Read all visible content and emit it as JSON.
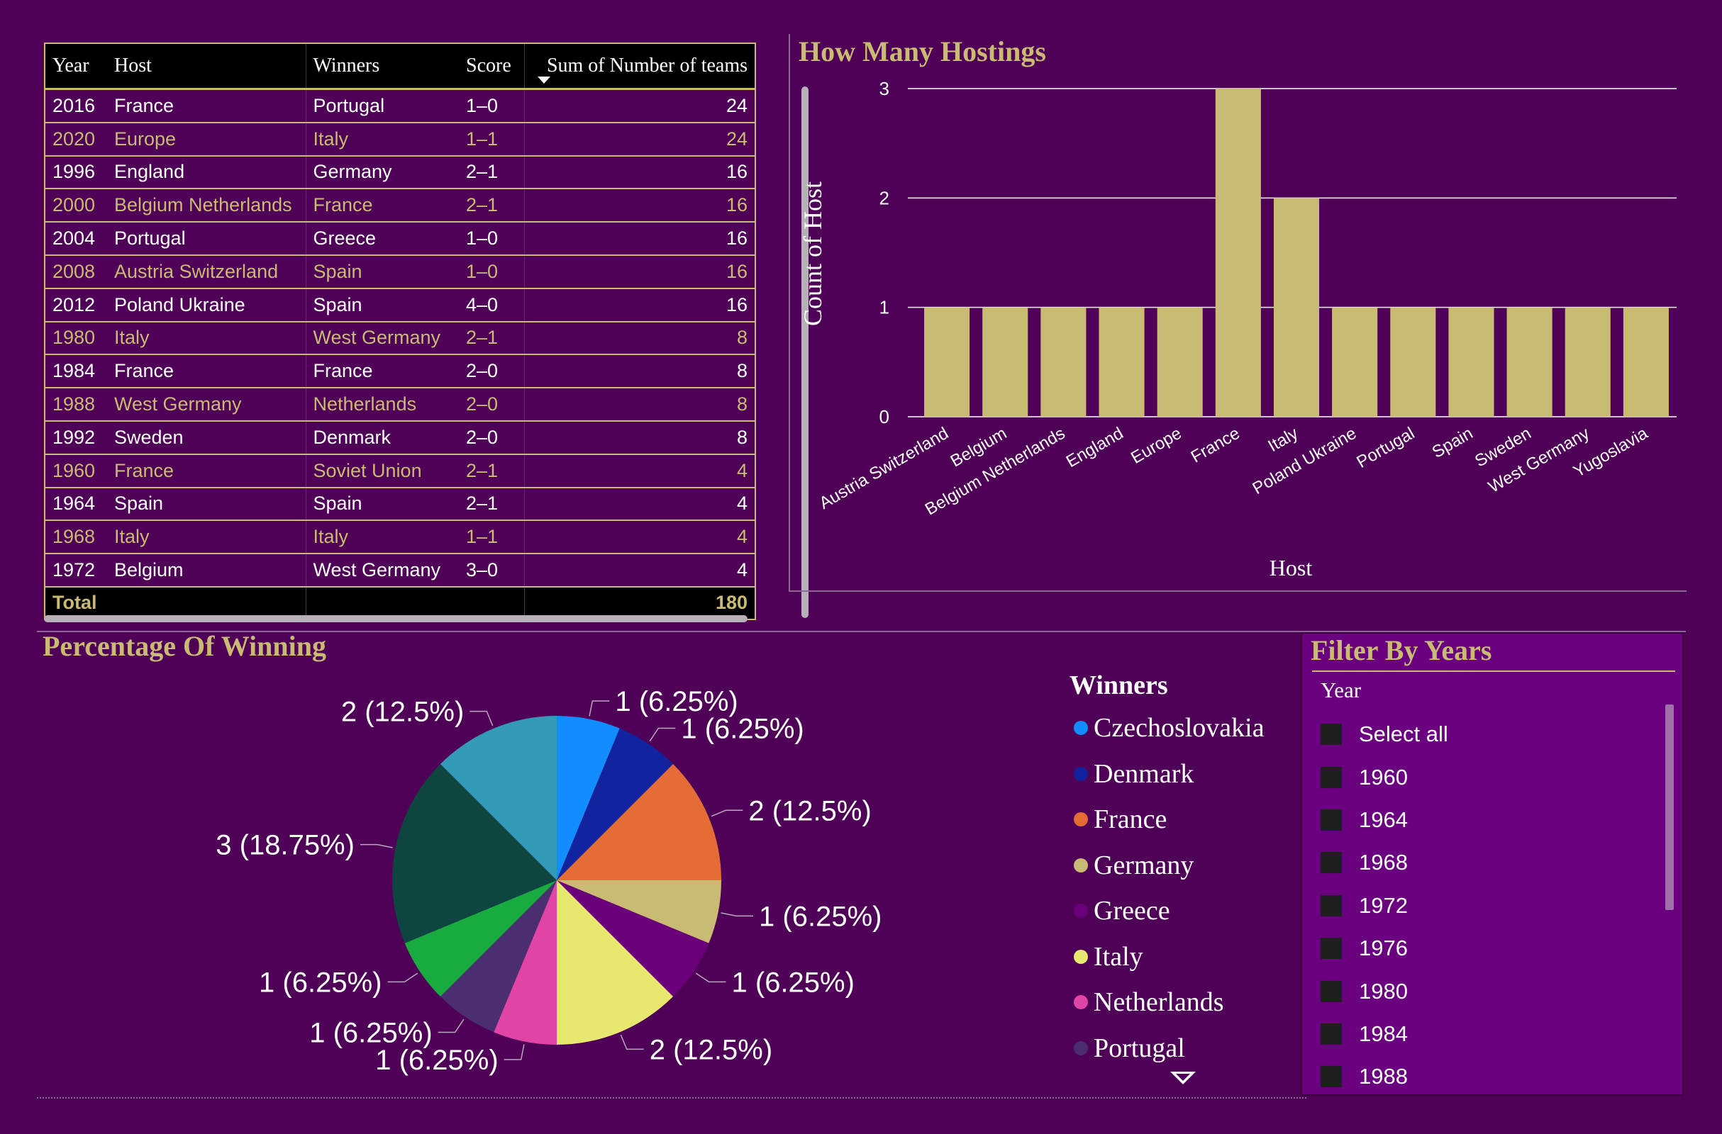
{
  "table": {
    "columns": [
      "Year",
      "Host",
      "Winners",
      "Score",
      "Sum of Number of teams"
    ],
    "rows": [
      [
        "2016",
        "France",
        "Portugal",
        "1–0",
        "24"
      ],
      [
        "2020",
        "Europe",
        "Italy",
        "1–1",
        "24"
      ],
      [
        "1996",
        "England",
        "Germany",
        "2–1",
        "16"
      ],
      [
        "2000",
        "Belgium Netherlands",
        "France",
        "2–1",
        "16"
      ],
      [
        "2004",
        "Portugal",
        "Greece",
        "1–0",
        "16"
      ],
      [
        "2008",
        "Austria Switzerland",
        "Spain",
        "1–0",
        "16"
      ],
      [
        "2012",
        "Poland Ukraine",
        "Spain",
        "4–0",
        "16"
      ],
      [
        "1980",
        "Italy",
        "West Germany",
        "2–1",
        "8"
      ],
      [
        "1984",
        "France",
        "France",
        "2–0",
        "8"
      ],
      [
        "1988",
        "West Germany",
        "Netherlands",
        "2–0",
        "8"
      ],
      [
        "1992",
        "Sweden",
        "Denmark",
        "2–0",
        "8"
      ],
      [
        "1960",
        "France",
        "Soviet Union",
        "2–1",
        "4"
      ],
      [
        "1964",
        "Spain",
        "Spain",
        "2–1",
        "4"
      ],
      [
        "1968",
        "Italy",
        "Italy",
        "1–1",
        "4"
      ],
      [
        "1972",
        "Belgium",
        "West Germany",
        "3–0",
        "4"
      ]
    ],
    "total_label": "Total",
    "total_value": "180"
  },
  "bar_chart": {
    "title": "How Many Hostings"
  },
  "pie_chart": {
    "title": "Percentage Of Winning"
  },
  "legend": {
    "title": "Winners",
    "items": [
      {
        "label": "Czechoslovakia",
        "color": "#118dff"
      },
      {
        "label": "Denmark",
        "color": "#12239e"
      },
      {
        "label": "France",
        "color": "#e66c37"
      },
      {
        "label": "Germany",
        "color": "#c9bb74"
      },
      {
        "label": "Greece",
        "color": "#6b007b"
      },
      {
        "label": "Italy",
        "color": "#e8e870"
      },
      {
        "label": "Netherlands",
        "color": "#e044a7"
      },
      {
        "label": "Portugal",
        "color": "#4a2e6e"
      }
    ]
  },
  "filter": {
    "title": "Filter By Years",
    "field": "Year",
    "options": [
      "Select all",
      "1960",
      "1964",
      "1968",
      "1972",
      "1976",
      "1980",
      "1984",
      "1988"
    ]
  },
  "chart_data": [
    {
      "type": "bar",
      "title": "How Many Hostings",
      "xlabel": "Host",
      "ylabel": "Count of Host",
      "categories": [
        "Austria Switzerland",
        "Belgium",
        "Belgium Netherlands",
        "England",
        "Europe",
        "France",
        "Italy",
        "Poland Ukraine",
        "Portugal",
        "Spain",
        "Sweden",
        "West Germany",
        "Yugoslavia"
      ],
      "values": [
        1,
        1,
        1,
        1,
        1,
        3,
        2,
        1,
        1,
        1,
        1,
        1,
        1
      ],
      "ylim": [
        0,
        3
      ],
      "yticks": [
        0,
        1,
        2,
        3
      ],
      "grid": true,
      "color": "#c9bb74"
    },
    {
      "type": "pie",
      "title": "Percentage Of Winning",
      "legend_title": "Winners",
      "slices": [
        {
          "value": 1,
          "label": "1 (6.25%)",
          "color": "#118dff"
        },
        {
          "value": 1,
          "label": "1 (6.25%)",
          "color": "#12239e"
        },
        {
          "value": 2,
          "label": "2 (12.5%)",
          "color": "#e66c37"
        },
        {
          "value": 1,
          "label": "1 (6.25%)",
          "color": "#c9bb74"
        },
        {
          "value": 1,
          "label": "1 (6.25%)",
          "color": "#6b007b"
        },
        {
          "value": 2,
          "label": "2 (12.5%)",
          "color": "#e8e870"
        },
        {
          "value": 1,
          "label": "1 (6.25%)",
          "color": "#e044a7"
        },
        {
          "value": 1,
          "label": "1 (6.25%)",
          "color": "#4a2e6e"
        },
        {
          "value": 1,
          "label": "1 (6.25%)",
          "color": "#1aab40"
        },
        {
          "value": 3,
          "label": "3 (18.75%)",
          "color": "#0f4540"
        },
        {
          "value": 2,
          "label": "2 (12.5%)",
          "color": "#3599b8"
        }
      ]
    }
  ]
}
